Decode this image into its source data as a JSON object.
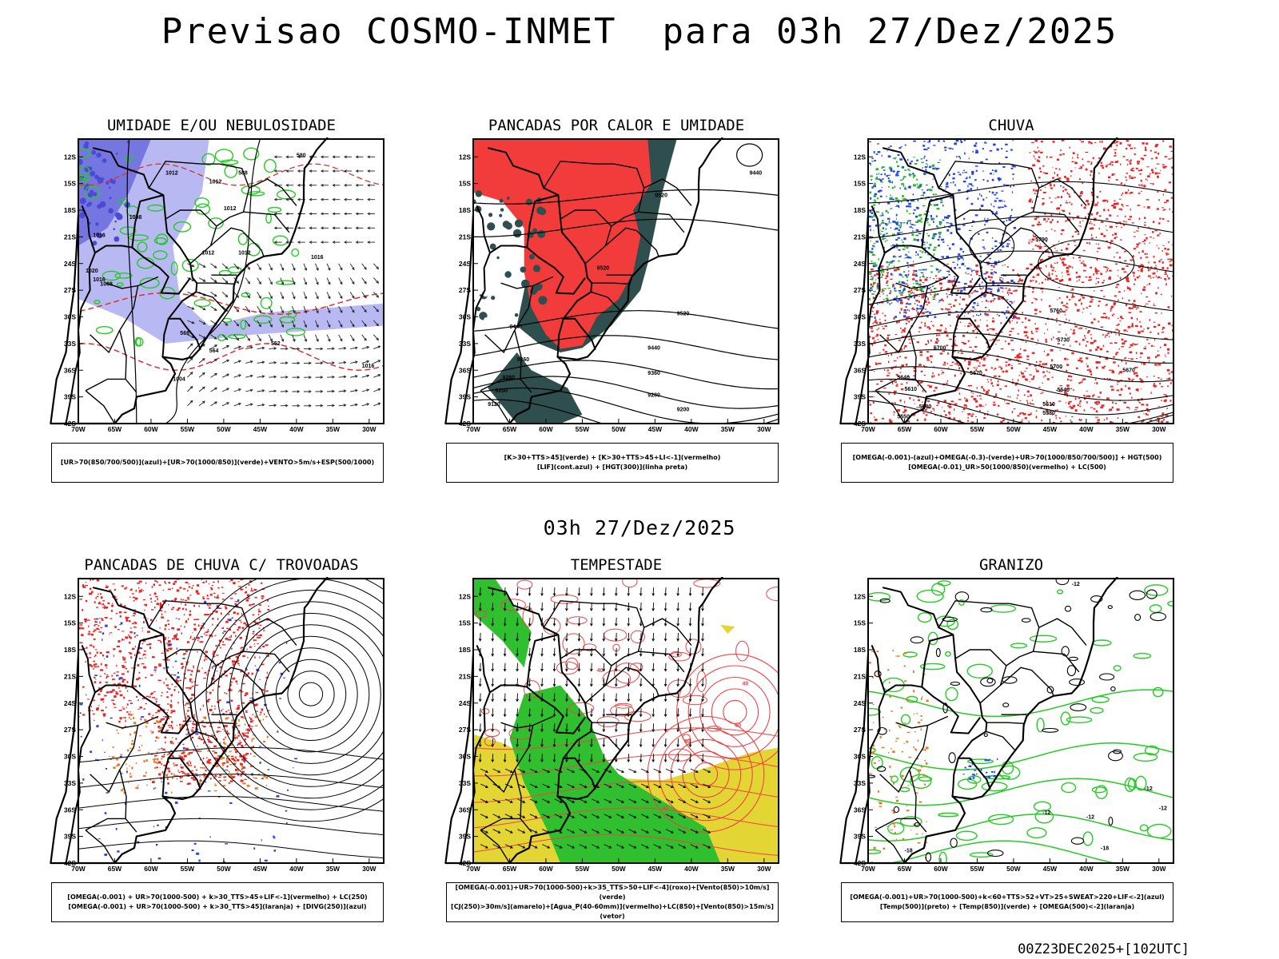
{
  "header": {
    "title": "Previsao COSMO-INMET  para 03h 27/Dez/2025",
    "middle_title": "03h 27/Dez/2025",
    "footer": "00Z23DEC2025+[102UTC]"
  },
  "axes": {
    "lat_labels": [
      "12S",
      "15S",
      "18S",
      "21S",
      "24S",
      "27S",
      "30S",
      "33S",
      "36S",
      "39S",
      "42S"
    ],
    "lon_labels": [
      "70W",
      "65W",
      "60W",
      "55W",
      "50W",
      "45W",
      "40W",
      "35W",
      "30W"
    ]
  },
  "panels": [
    {
      "id": "umidade",
      "title": "UMIDADE E/OU NEBULOSIDADE",
      "caption": [
        "[UR>70(850/700/500)](azul)+[UR>70(1000/850)](verde)+VENTO>5m/s+ESP(500/1000)"
      ],
      "contour_labels": [
        "1012",
        "1012",
        "1012",
        "1008",
        "1016",
        "1012",
        "1012",
        "1016",
        "1016",
        "1008",
        "1004",
        "1020",
        "1016",
        "552",
        "564",
        "588",
        "580",
        "568"
      ]
    },
    {
      "id": "pancadas-calor",
      "title": "PANCADAS POR CALOR E UMIDADE",
      "caption": [
        "[K>30+TTS>45](verde) + [K>30+TTS>45+LI<-1](vermelho)",
        "[LIF](cont.azul) + [HGT(300)](linha preta)"
      ],
      "contour_labels": [
        "9440",
        "9520",
        "9520",
        "9520",
        "9440",
        "9440",
        "9360",
        "9360",
        "9280",
        "9280",
        "9200",
        "9200",
        "9120"
      ]
    },
    {
      "id": "chuva",
      "title": "CHUVA",
      "caption": [
        "[OMEGA(-0.001)-(azul)+OMEGA(-0.3)-(verde)+UR>70(1000/850/700/500)] + HGT(500)",
        "[OMEGA(-0.01)_UR>50(1000/850)(vermelho) + LC(500)"
      ],
      "contour_labels": [
        "5790",
        "5760",
        "5730",
        "5700",
        "5700",
        "5670",
        "5670",
        "5640",
        "5640",
        "5610",
        "5610",
        "5580",
        "5580",
        "5550"
      ]
    },
    {
      "id": "pancadas-trovoadas",
      "title": "PANCADAS DE CHUVA C/ TROVOADAS",
      "caption": [
        "[OMEGA(-0.001) + UR>70(1000-500) + k>30_TTS>45+LIF<-1](vermelho) + LC(250)",
        "[OMEGA(-0.001) + UR>70(1000-500) + k>30_TTS>45](laranja) + [DIVG(250)](azul)"
      ],
      "contour_labels": []
    },
    {
      "id": "tempestade",
      "title": "TEMPESTADE",
      "caption": [
        "[OMEGA(-0.001)+UR>70(1000-500)+k>35_TTS>50+LIF<-4](roxo)+[Vento(850)>10m/s](verde)",
        "[CJ(250)>30m/s](amarelo)+[Agua_P(40-60mm)](vermelho)+LC(850)+[Vento(850)>15m/s](vetor)"
      ],
      "contour_labels": [
        "40",
        "40",
        "40",
        "40",
        "40"
      ]
    },
    {
      "id": "granizo",
      "title": "GRANIZO",
      "caption": [
        "[OMEGA(-0.001)+UR>70(1000-500)+k<60+TTS>52+VT>25+SWEAT>220+LIF<-2](azul)",
        "[Temp(500)](preto) + [Temp(850)](verde) + [OMEGA(500)<-2](laranja)"
      ],
      "contour_labels": [
        "-18",
        "-12",
        "-12",
        "-12",
        "-12",
        "-18",
        "-12"
      ]
    }
  ]
}
